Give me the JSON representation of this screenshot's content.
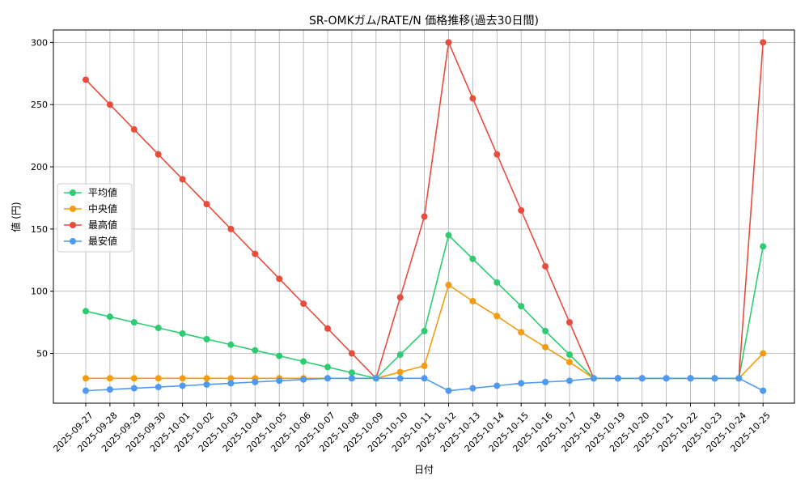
{
  "chart_data": {
    "type": "line",
    "title": "SR-OMKガム/RATE/N 価格推移(過去30日間)",
    "xlabel": "日付",
    "ylabel": "値 (円)",
    "ylim": [
      10,
      310
    ],
    "yticks": [
      50,
      100,
      150,
      200,
      250,
      300
    ],
    "grid": true,
    "legend_position": "center-left",
    "x": [
      "2025-09-27",
      "2025-09-28",
      "2025-09-29",
      "2025-09-30",
      "2025-10-01",
      "2025-10-02",
      "2025-10-03",
      "2025-10-04",
      "2025-10-05",
      "2025-10-06",
      "2025-10-07",
      "2025-10-08",
      "2025-10-09",
      "2025-10-10",
      "2025-10-11",
      "2025-10-12",
      "2025-10-13",
      "2025-10-14",
      "2025-10-15",
      "2025-10-16",
      "2025-10-17",
      "2025-10-18",
      "2025-10-19",
      "2025-10-20",
      "2025-10-21",
      "2025-10-22",
      "2025-10-23",
      "2025-10-24",
      "2025-10-25"
    ],
    "series": [
      {
        "name": "平均値",
        "color": "#2ecc71",
        "values": [
          84,
          79.5,
          75,
          70.5,
          66,
          61.5,
          57,
          52.5,
          48,
          43.5,
          39,
          34.5,
          30,
          49,
          68,
          145,
          126,
          107,
          88,
          68,
          49,
          30,
          30,
          30,
          30,
          30,
          30,
          30,
          136
        ]
      },
      {
        "name": "中央値",
        "color": "#f39c12",
        "values": [
          30,
          30,
          30,
          30,
          30,
          30,
          30,
          30,
          30,
          30,
          30,
          30,
          30,
          35,
          40,
          105,
          92,
          80,
          67,
          55,
          43,
          30,
          30,
          30,
          30,
          30,
          30,
          30,
          50
        ]
      },
      {
        "name": "最高値",
        "color": "#e74c3c",
        "values": [
          270,
          250,
          230,
          210,
          190,
          170,
          150,
          130,
          110,
          90,
          70,
          50,
          30,
          95,
          160,
          300,
          255,
          210,
          165,
          120,
          75,
          30,
          30,
          30,
          30,
          30,
          30,
          30,
          300
        ]
      },
      {
        "name": "最安値",
        "color": "#4e9af1",
        "values": [
          20,
          21,
          22,
          23,
          24,
          25,
          26,
          27,
          28,
          29,
          30,
          30,
          30,
          30,
          30,
          20,
          22,
          24,
          26,
          27,
          28,
          30,
          30,
          30,
          30,
          30,
          30,
          30,
          20
        ]
      }
    ]
  }
}
